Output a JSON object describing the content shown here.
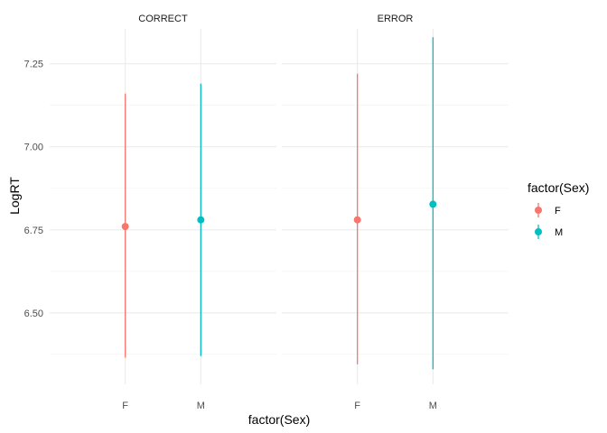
{
  "chart_data": {
    "type": "pointrange",
    "xlabel": "factor(Sex)",
    "ylabel": "LogRT",
    "categories": [
      "F",
      "M"
    ],
    "ylim": [
      6.285,
      7.355
    ],
    "yticks": [
      "6.50",
      "6.75",
      "7.00",
      "7.25"
    ],
    "ytick_values": [
      6.5,
      6.75,
      7.0,
      7.25
    ],
    "colors": {
      "F": "#F8766D",
      "M": "#00BFC4"
    },
    "legend": {
      "title": "factor(Sex)",
      "position": "right",
      "entries": [
        {
          "label": "F",
          "key": "F"
        },
        {
          "label": "M",
          "key": "M"
        }
      ]
    },
    "facets": [
      {
        "label": "CORRECT",
        "points": [
          {
            "x": "F",
            "y": 6.76,
            "ymin": 6.365,
            "ymax": 7.16
          },
          {
            "x": "M",
            "y": 6.78,
            "ymin": 6.37,
            "ymax": 7.19
          }
        ]
      },
      {
        "label": "ERROR",
        "points": [
          {
            "x": "F",
            "y": 6.78,
            "ymin": 6.345,
            "ymax": 7.22
          },
          {
            "x": "M",
            "y": 6.827,
            "ymin": 6.33,
            "ymax": 7.33
          }
        ]
      }
    ]
  }
}
